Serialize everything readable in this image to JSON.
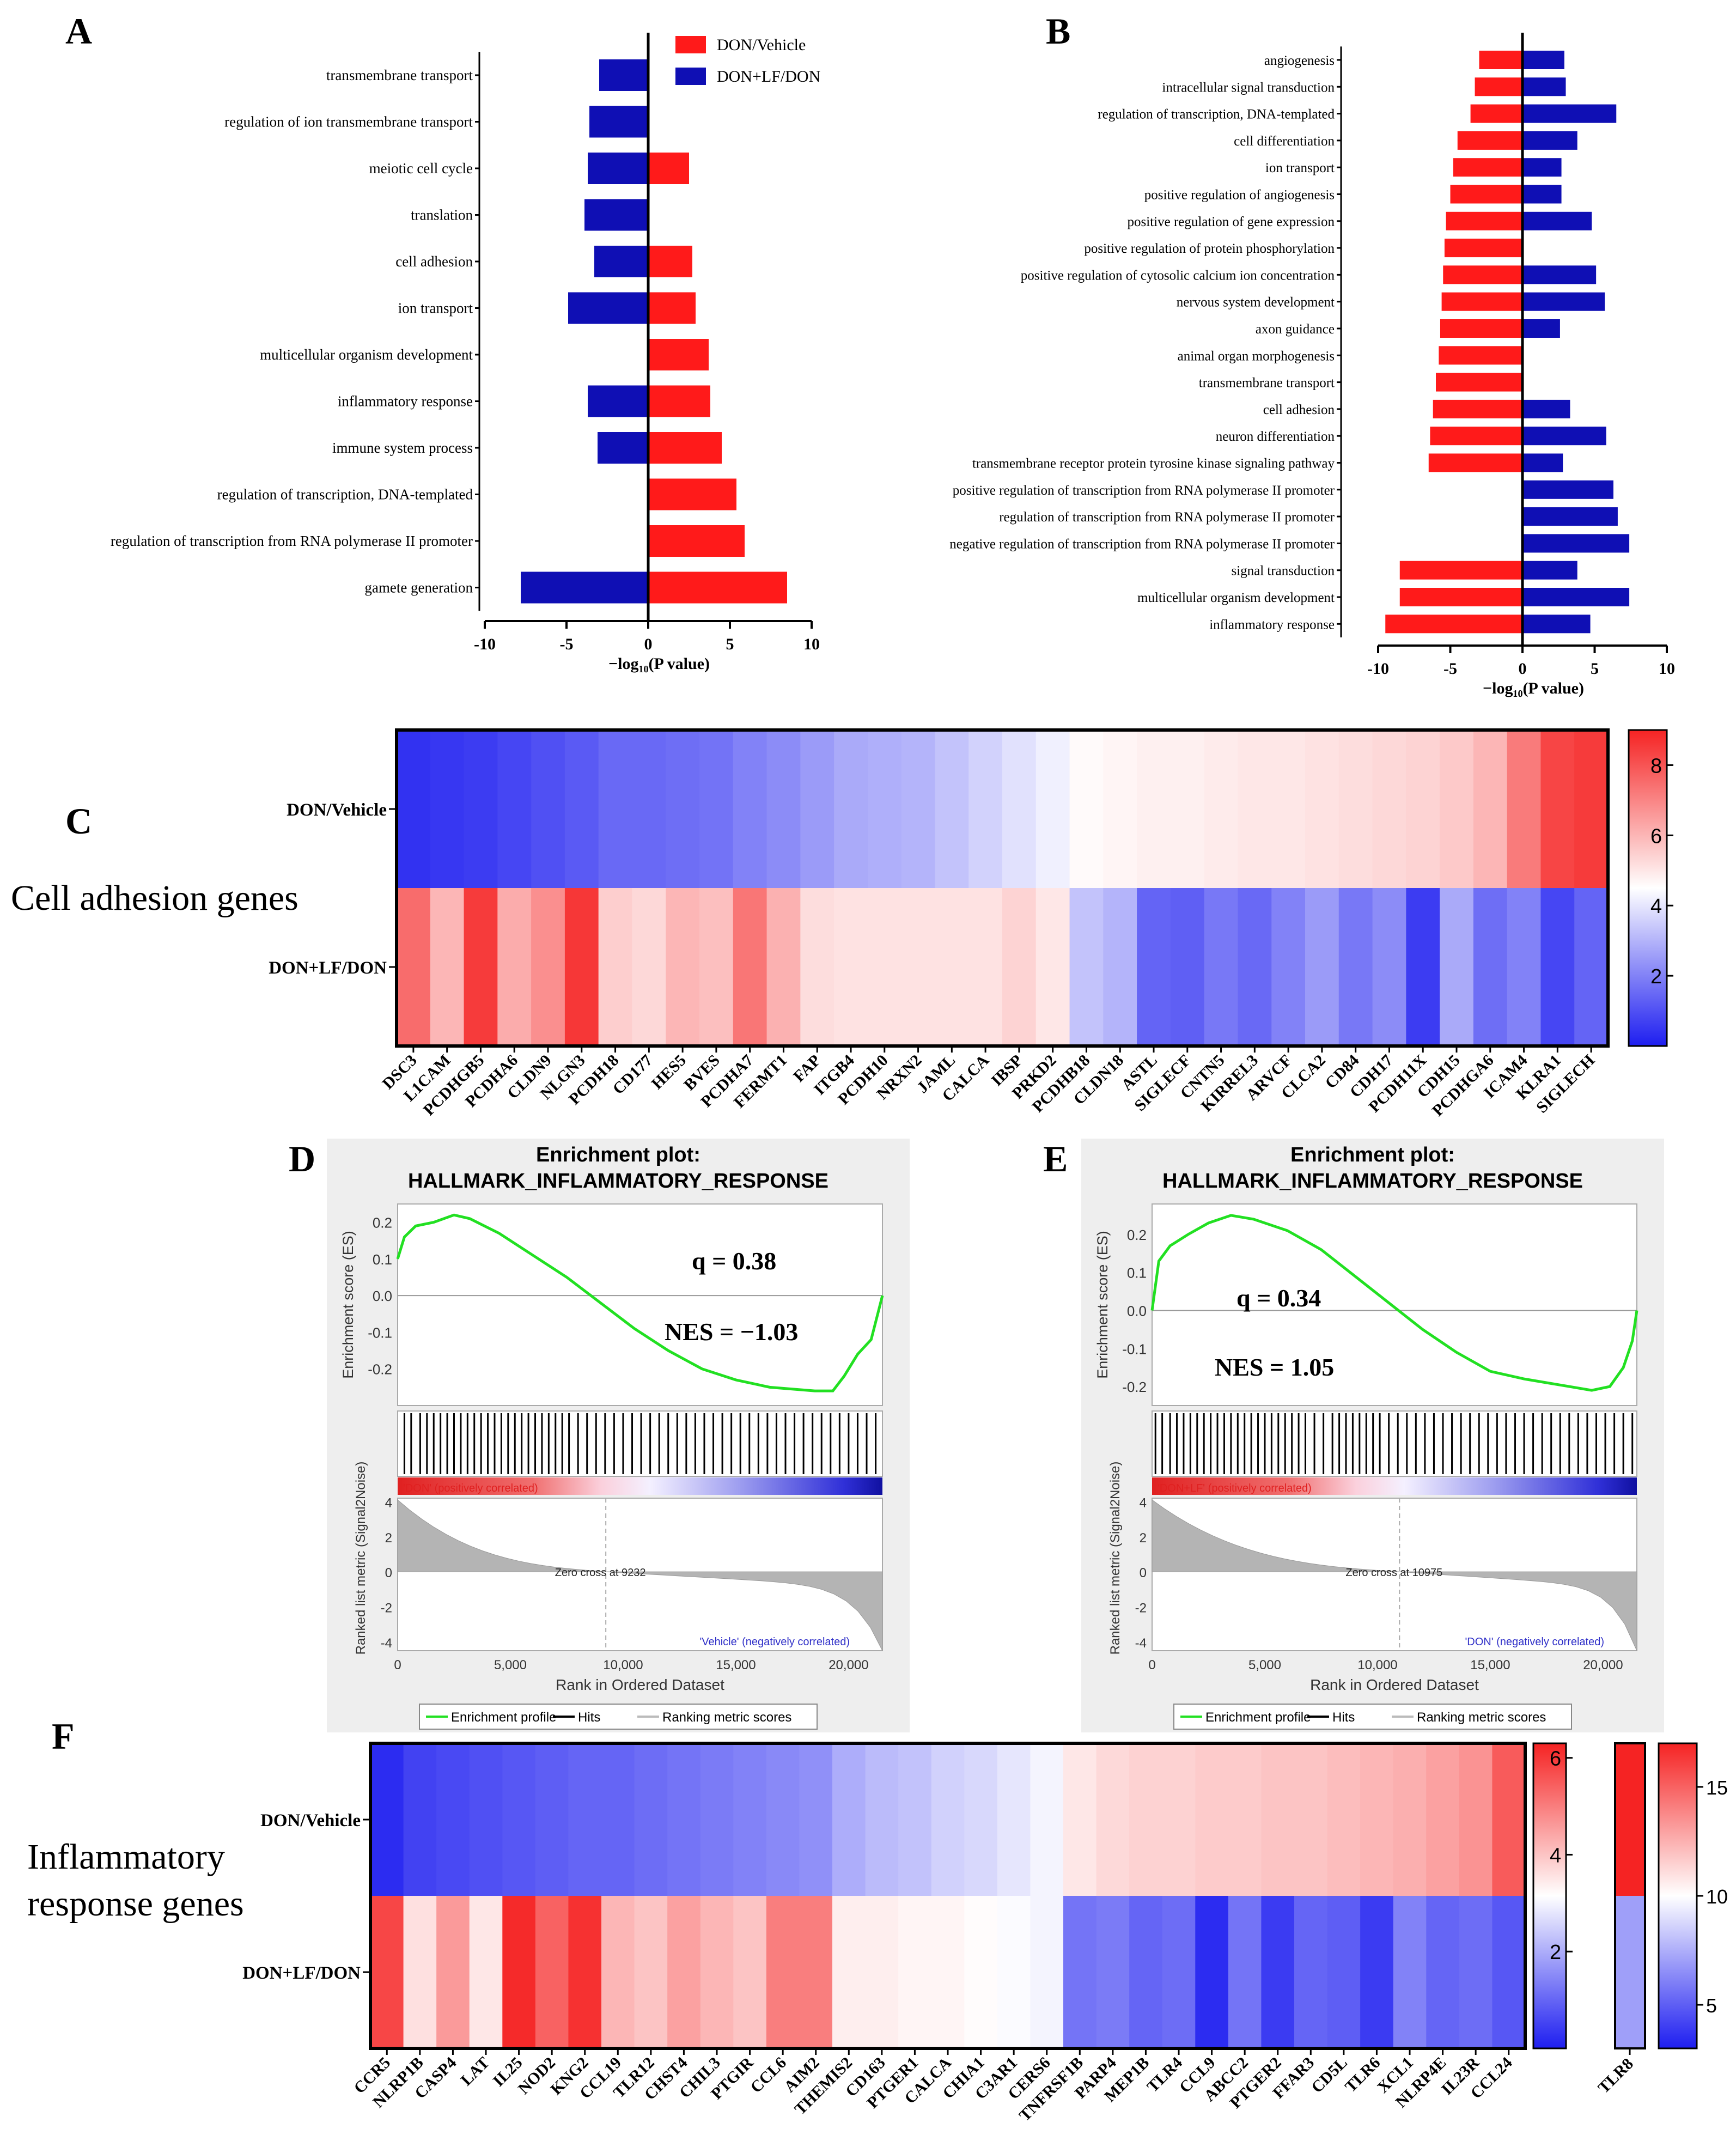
{
  "colors": {
    "red": "#ff1a1a",
    "blue": "#0f0fb4",
    "green": "#22e022",
    "grey_panel": "#eeeeee"
  },
  "chart_data": [
    {
      "id": "A",
      "panel_label": "A",
      "type": "bar",
      "orientation": "horizontal-diverging",
      "xlabel": "−log₁₀(P value)",
      "xlim": [
        -10,
        10
      ],
      "xticks": [
        -10,
        -5,
        0,
        5,
        10
      ],
      "legend": [
        "DON/Vehicle",
        "DON+LF/DON"
      ],
      "legend_position": "top-right",
      "categories": [
        "transmembrane transport",
        "regulation of ion transmembrane transport",
        "meiotic cell cycle",
        "translation",
        "cell adhesion",
        "ion transport",
        "multicellular organism development",
        "inflammatory response",
        "immune system process",
        "regulation of transcription, DNA-templated",
        "regulation of transcription from RNA polymerase II promoter",
        "gamete generation"
      ],
      "series": [
        {
          "name": "DON/Vehicle",
          "color": "red",
          "values": [
            0,
            0,
            2.5,
            0,
            2.7,
            2.9,
            3.7,
            3.8,
            4.5,
            5.4,
            5.9,
            8.5
          ]
        },
        {
          "name": "DON+LF/DON",
          "color": "blue",
          "values": [
            -3.0,
            -3.6,
            -3.7,
            -3.9,
            -3.3,
            -4.9,
            0,
            -3.7,
            -3.1,
            0,
            0,
            -7.8
          ]
        }
      ]
    },
    {
      "id": "B",
      "panel_label": "B",
      "type": "bar",
      "orientation": "horizontal-diverging",
      "xlabel": "−log₁₀(P value)",
      "xlim": [
        -10,
        10
      ],
      "xticks": [
        -10,
        -5,
        0,
        5,
        10
      ],
      "categories": [
        "angiogenesis",
        "intracellular signal transduction",
        "regulation of transcription, DNA-templated",
        "cell differentiation",
        "ion transport",
        "positive regulation of angiogenesis",
        "positive regulation of gene expression",
        "positive regulation of protein phosphorylation",
        "positive regulation of cytosolic calcium ion concentration",
        "nervous system development",
        "axon guidance",
        "animal organ morphogenesis",
        "transmembrane transport",
        "cell adhesion",
        "neuron differentiation",
        "transmembrane receptor protein tyrosine kinase signaling pathway",
        "positive regulation of transcription from RNA polymerase II promoter",
        "regulation of transcription from RNA polymerase II promoter",
        "negative regulation of transcription from RNA polymerase II promoter",
        "signal transduction",
        "multicellular organism development",
        "inflammatory response"
      ],
      "series": [
        {
          "name": "DON/Vehicle",
          "color": "red",
          "values": [
            -3.0,
            -3.3,
            -3.6,
            -4.5,
            -4.8,
            -5.0,
            -5.3,
            -5.4,
            -5.5,
            -5.6,
            -5.7,
            -5.8,
            -6.0,
            -6.2,
            -6.4,
            -6.5,
            0,
            0,
            0,
            -8.5,
            -8.5,
            -9.5
          ]
        },
        {
          "name": "DON+LF/DON",
          "color": "blue",
          "values": [
            2.9,
            3.0,
            6.5,
            3.8,
            2.7,
            2.7,
            4.8,
            0,
            5.1,
            5.7,
            2.6,
            0,
            0,
            3.3,
            5.8,
            2.8,
            6.3,
            6.6,
            7.4,
            3.8,
            7.4,
            4.7
          ]
        }
      ]
    },
    {
      "id": "C",
      "panel_label": "C",
      "type": "heatmap",
      "side_label": "Cell adhesion genes",
      "rows": [
        "DON/Vehicle",
        "DON+LF/DON"
      ],
      "columns": [
        "DSC3",
        "L1CAM",
        "PCDHGB5",
        "PCDHA6",
        "CLDN9",
        "NLGN3",
        "PCDH18",
        "CD177",
        "HES5",
        "BVES",
        "PCDHA7",
        "FERMT1",
        "FAP",
        "ITGB4",
        "PCDH10",
        "NRXN2",
        "JAML",
        "CALCA",
        "IBSP",
        "PRKD2",
        "PCDHB18",
        "CLDN18",
        "ASTL",
        "SIGLECF",
        "CNTN5",
        "KIRREL3",
        "ARVCF",
        "CLCA2",
        "CD84",
        "CDH17",
        "PCDH11X",
        "CDH15",
        "PCDHGA6",
        "ICAM4",
        "KLRA1",
        "SIGLECH"
      ],
      "values": [
        [
          0.4,
          0.5,
          0.6,
          0.8,
          1.0,
          1.2,
          1.5,
          1.5,
          1.6,
          1.7,
          2.0,
          2.2,
          2.5,
          2.8,
          2.9,
          3.0,
          3.3,
          3.6,
          3.9,
          4.2,
          4.6,
          4.7,
          4.8,
          4.8,
          4.9,
          5.0,
          5.0,
          5.1,
          5.2,
          5.3,
          5.4,
          5.6,
          6.0,
          7.2,
          8.3,
          8.5
        ],
        [
          7.5,
          6.0,
          8.5,
          6.2,
          6.8,
          8.6,
          5.5,
          5.3,
          6.0,
          5.8,
          7.3,
          6.1,
          5.2,
          5.1,
          5.1,
          5.1,
          5.1,
          5.1,
          5.4,
          5.0,
          3.3,
          3.0,
          1.4,
          1.3,
          1.8,
          1.5,
          2.0,
          2.5,
          1.8,
          2.2,
          0.6,
          2.8,
          1.6,
          2.0,
          0.8,
          1.4
        ]
      ],
      "color_scale": {
        "type": "blue-white-red",
        "min": 0,
        "max": 9,
        "ticks": [
          2,
          4,
          6,
          8
        ]
      }
    },
    {
      "id": "D",
      "panel_label": "D",
      "type": "line",
      "plot_title": "Enrichment plot:",
      "gene_set": "HALLMARK_INFLAMMATORY_RESPONSE",
      "q_text": "q = 0.38",
      "nes_text": "NES = −1.03",
      "ylabel": "Enrichment score (ES)",
      "ylim": [
        -0.3,
        0.25
      ],
      "yticks": [
        0.2,
        0.1,
        0.0,
        -0.1,
        -0.2
      ],
      "es_x": [
        0,
        300,
        800,
        1600,
        2500,
        3200,
        4500,
        6000,
        7500,
        9000,
        10500,
        12000,
        13500,
        15000,
        16500,
        17500,
        18500,
        19300,
        19800,
        20400,
        21000,
        21500
      ],
      "es_y": [
        0.1,
        0.16,
        0.19,
        0.2,
        0.22,
        0.21,
        0.17,
        0.11,
        0.05,
        -0.02,
        -0.09,
        -0.15,
        -0.2,
        -0.23,
        -0.25,
        -0.255,
        -0.26,
        -0.26,
        -0.22,
        -0.16,
        -0.12,
        0.0
      ],
      "hits": [
        300,
        600,
        1000,
        1300,
        1600,
        1900,
        2200,
        2500,
        2800,
        3100,
        3400,
        3700,
        4000,
        4300,
        4600,
        4900,
        5200,
        5500,
        5800,
        6100,
        6400,
        6700,
        7000,
        7300,
        7600,
        8000,
        8400,
        8800,
        9200,
        9600,
        10000,
        10400,
        10800,
        11200,
        11600,
        12000,
        12400,
        12800,
        13200,
        13600,
        14000,
        14400,
        14800,
        15200,
        15600,
        16000,
        16400,
        16800,
        17200,
        17600,
        18000,
        18400,
        18800,
        19200,
        19600,
        20000,
        20400,
        20800,
        21200
      ],
      "metric_ylabel": "Ranked list metric (Signal2Noise)",
      "metric_yticks": [
        4,
        2,
        0,
        -2,
        -4
      ],
      "metric_ylim": [
        -4.5,
        4.2
      ],
      "x_axis_label": "Rank in Ordered Dataset",
      "xticks": [
        "0",
        "5,000",
        "10,000",
        "15,000",
        "20,000"
      ],
      "xlim": [
        0,
        21500
      ],
      "zero_cross": 9232,
      "zero_cross_text": "Zero cross at 9232",
      "pos_label": "'DON' (positively correlated)",
      "neg_label": "'Vehicle' (negatively correlated)",
      "legend": [
        "Enrichment profile",
        "Hits",
        "Ranking metric scores"
      ]
    },
    {
      "id": "E",
      "panel_label": "E",
      "type": "line",
      "plot_title": "Enrichment plot:",
      "gene_set": "HALLMARK_INFLAMMATORY_RESPONSE",
      "q_text": "q = 0.34",
      "nes_text": "NES = 1.05",
      "ylabel": "Enrichment score (ES)",
      "ylim": [
        -0.25,
        0.28
      ],
      "yticks": [
        0.2,
        0.1,
        0.0,
        -0.1,
        -0.2
      ],
      "es_x": [
        0,
        300,
        800,
        1600,
        2500,
        3500,
        4500,
        6000,
        7500,
        9000,
        10500,
        12000,
        13500,
        15000,
        16500,
        17500,
        18500,
        19500,
        20300,
        20900,
        21300,
        21500
      ],
      "es_y": [
        0.0,
        0.13,
        0.17,
        0.2,
        0.23,
        0.25,
        0.24,
        0.21,
        0.16,
        0.09,
        0.02,
        -0.05,
        -0.11,
        -0.16,
        -0.18,
        -0.19,
        -0.2,
        -0.21,
        -0.2,
        -0.15,
        -0.08,
        0.0
      ],
      "hits": [
        150,
        450,
        800,
        1100,
        1400,
        1700,
        2000,
        2300,
        2600,
        2900,
        3200,
        3500,
        3800,
        4100,
        4400,
        4700,
        5000,
        5300,
        5600,
        5900,
        6200,
        6500,
        6800,
        7200,
        7600,
        8000,
        8300,
        8600,
        8900,
        9200,
        9500,
        9800,
        10100,
        10500,
        10900,
        11300,
        11700,
        12100,
        12500,
        12900,
        13300,
        13700,
        14100,
        14500,
        14900,
        15300,
        15700,
        16100,
        16500,
        16900,
        17300,
        17700,
        18100,
        18500,
        18900,
        19300,
        19700,
        20100,
        20500,
        20900,
        21300
      ],
      "metric_ylabel": "Ranked list metric (Signal2Noise)",
      "metric_yticks": [
        4,
        2,
        0,
        -2,
        -4
      ],
      "metric_ylim": [
        -4.5,
        4.2
      ],
      "x_axis_label": "Rank in Ordered Dataset",
      "xticks": [
        "0",
        "5,000",
        "10,000",
        "15,000",
        "20,000"
      ],
      "xlim": [
        0,
        21500
      ],
      "zero_cross": 10975,
      "zero_cross_text": "Zero cross at 10975",
      "pos_label": "'DON+LF' (positively correlated)",
      "neg_label": "'DON' (negatively correlated)",
      "legend": [
        "Enrichment profile",
        "Hits",
        "Ranking metric scores"
      ]
    },
    {
      "id": "F",
      "panel_label": "F",
      "type": "heatmap",
      "side_label": [
        "Inflammatory",
        "response genes"
      ],
      "rows": [
        "DON/Vehicle",
        "DON+LF/DON"
      ],
      "columns": [
        "CCR5",
        "NLRP1B",
        "CASP4",
        "LAT",
        "IL25",
        "NOD2",
        "KNG2",
        "CCL19",
        "TLR12",
        "CHST4",
        "CHIL3",
        "PTGIR",
        "CCL6",
        "AIM2",
        "THEMIS2",
        "CD163",
        "PTGER1",
        "CALCA",
        "CHIA1",
        "C3AR1",
        "CERS6",
        "TNFRSF1B",
        "PARP4",
        "MEP1B",
        "TLR4",
        "CCL9",
        "ABCC2",
        "PTGER2",
        "FFAR3",
        "CD5L",
        "TLR6",
        "XCL1",
        "NLRP4E",
        "IL23R",
        "CCL24"
      ],
      "values": [
        [
          0.2,
          0.5,
          0.6,
          0.7,
          0.8,
          0.9,
          1.0,
          1.0,
          1.1,
          1.2,
          1.3,
          1.4,
          1.5,
          1.6,
          2.0,
          2.2,
          2.3,
          2.5,
          2.6,
          2.8,
          3.0,
          3.5,
          3.7,
          3.8,
          3.8,
          3.9,
          3.9,
          4.0,
          4.0,
          4.1,
          4.2,
          4.3,
          4.5,
          4.7,
          5.5
        ],
        [
          5.8,
          3.6,
          4.6,
          3.5,
          6.2,
          5.4,
          6.1,
          4.2,
          4.0,
          4.5,
          4.2,
          4.0,
          5.0,
          5.0,
          3.4,
          3.4,
          3.3,
          3.3,
          3.2,
          3.1,
          3.0,
          1.2,
          1.3,
          1.0,
          1.1,
          0.2,
          1.2,
          0.4,
          1.0,
          0.9,
          0.4,
          1.4,
          1.0,
          1.1,
          0.8
        ]
      ],
      "color_scale": {
        "type": "blue-white-red",
        "min": 0,
        "max": 6.3,
        "ticks": [
          2,
          4,
          6
        ]
      },
      "extra_column": {
        "label": "TLR8",
        "values": [
          17,
          7
        ],
        "color_scale": {
          "type": "blue-white-red",
          "min": 3,
          "max": 17,
          "ticks": [
            5,
            10,
            15
          ]
        }
      }
    }
  ]
}
